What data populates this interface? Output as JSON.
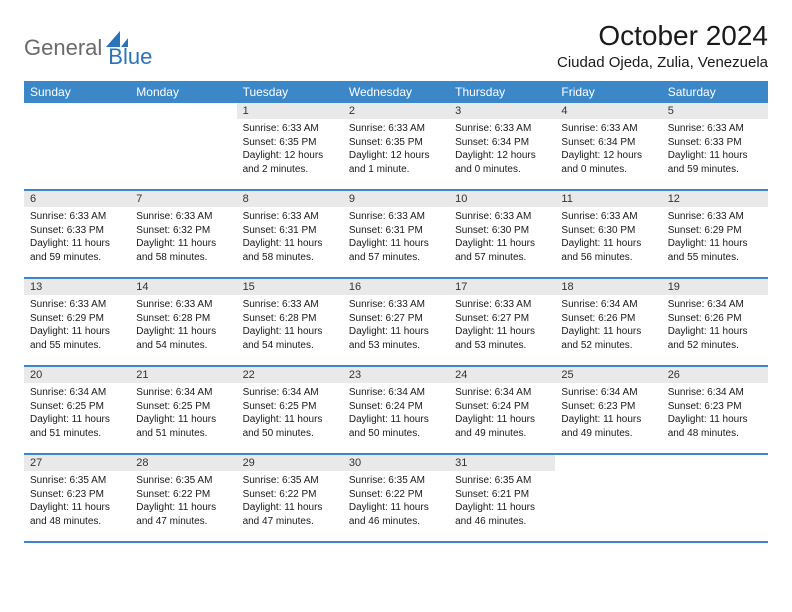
{
  "logo": {
    "general": "General",
    "blue": "Blue"
  },
  "title": "October 2024",
  "location": "Ciudad Ojeda, Zulia, Venezuela",
  "colors": {
    "header_bg": "#3b87c8",
    "header_text": "#ffffff",
    "daynum_bg": "#e9e9e9",
    "border": "#3b87c8",
    "logo_gray": "#6a6a6a",
    "logo_blue": "#2b74b8"
  },
  "day_names": [
    "Sunday",
    "Monday",
    "Tuesday",
    "Wednesday",
    "Thursday",
    "Friday",
    "Saturday"
  ],
  "weeks": [
    [
      {
        "n": "",
        "sr": "",
        "ss": "",
        "dl": ""
      },
      {
        "n": "",
        "sr": "",
        "ss": "",
        "dl": ""
      },
      {
        "n": "1",
        "sr": "Sunrise: 6:33 AM",
        "ss": "Sunset: 6:35 PM",
        "dl": "Daylight: 12 hours and 2 minutes."
      },
      {
        "n": "2",
        "sr": "Sunrise: 6:33 AM",
        "ss": "Sunset: 6:35 PM",
        "dl": "Daylight: 12 hours and 1 minute."
      },
      {
        "n": "3",
        "sr": "Sunrise: 6:33 AM",
        "ss": "Sunset: 6:34 PM",
        "dl": "Daylight: 12 hours and 0 minutes."
      },
      {
        "n": "4",
        "sr": "Sunrise: 6:33 AM",
        "ss": "Sunset: 6:34 PM",
        "dl": "Daylight: 12 hours and 0 minutes."
      },
      {
        "n": "5",
        "sr": "Sunrise: 6:33 AM",
        "ss": "Sunset: 6:33 PM",
        "dl": "Daylight: 11 hours and 59 minutes."
      }
    ],
    [
      {
        "n": "6",
        "sr": "Sunrise: 6:33 AM",
        "ss": "Sunset: 6:33 PM",
        "dl": "Daylight: 11 hours and 59 minutes."
      },
      {
        "n": "7",
        "sr": "Sunrise: 6:33 AM",
        "ss": "Sunset: 6:32 PM",
        "dl": "Daylight: 11 hours and 58 minutes."
      },
      {
        "n": "8",
        "sr": "Sunrise: 6:33 AM",
        "ss": "Sunset: 6:31 PM",
        "dl": "Daylight: 11 hours and 58 minutes."
      },
      {
        "n": "9",
        "sr": "Sunrise: 6:33 AM",
        "ss": "Sunset: 6:31 PM",
        "dl": "Daylight: 11 hours and 57 minutes."
      },
      {
        "n": "10",
        "sr": "Sunrise: 6:33 AM",
        "ss": "Sunset: 6:30 PM",
        "dl": "Daylight: 11 hours and 57 minutes."
      },
      {
        "n": "11",
        "sr": "Sunrise: 6:33 AM",
        "ss": "Sunset: 6:30 PM",
        "dl": "Daylight: 11 hours and 56 minutes."
      },
      {
        "n": "12",
        "sr": "Sunrise: 6:33 AM",
        "ss": "Sunset: 6:29 PM",
        "dl": "Daylight: 11 hours and 55 minutes."
      }
    ],
    [
      {
        "n": "13",
        "sr": "Sunrise: 6:33 AM",
        "ss": "Sunset: 6:29 PM",
        "dl": "Daylight: 11 hours and 55 minutes."
      },
      {
        "n": "14",
        "sr": "Sunrise: 6:33 AM",
        "ss": "Sunset: 6:28 PM",
        "dl": "Daylight: 11 hours and 54 minutes."
      },
      {
        "n": "15",
        "sr": "Sunrise: 6:33 AM",
        "ss": "Sunset: 6:28 PM",
        "dl": "Daylight: 11 hours and 54 minutes."
      },
      {
        "n": "16",
        "sr": "Sunrise: 6:33 AM",
        "ss": "Sunset: 6:27 PM",
        "dl": "Daylight: 11 hours and 53 minutes."
      },
      {
        "n": "17",
        "sr": "Sunrise: 6:33 AM",
        "ss": "Sunset: 6:27 PM",
        "dl": "Daylight: 11 hours and 53 minutes."
      },
      {
        "n": "18",
        "sr": "Sunrise: 6:34 AM",
        "ss": "Sunset: 6:26 PM",
        "dl": "Daylight: 11 hours and 52 minutes."
      },
      {
        "n": "19",
        "sr": "Sunrise: 6:34 AM",
        "ss": "Sunset: 6:26 PM",
        "dl": "Daylight: 11 hours and 52 minutes."
      }
    ],
    [
      {
        "n": "20",
        "sr": "Sunrise: 6:34 AM",
        "ss": "Sunset: 6:25 PM",
        "dl": "Daylight: 11 hours and 51 minutes."
      },
      {
        "n": "21",
        "sr": "Sunrise: 6:34 AM",
        "ss": "Sunset: 6:25 PM",
        "dl": "Daylight: 11 hours and 51 minutes."
      },
      {
        "n": "22",
        "sr": "Sunrise: 6:34 AM",
        "ss": "Sunset: 6:25 PM",
        "dl": "Daylight: 11 hours and 50 minutes."
      },
      {
        "n": "23",
        "sr": "Sunrise: 6:34 AM",
        "ss": "Sunset: 6:24 PM",
        "dl": "Daylight: 11 hours and 50 minutes."
      },
      {
        "n": "24",
        "sr": "Sunrise: 6:34 AM",
        "ss": "Sunset: 6:24 PM",
        "dl": "Daylight: 11 hours and 49 minutes."
      },
      {
        "n": "25",
        "sr": "Sunrise: 6:34 AM",
        "ss": "Sunset: 6:23 PM",
        "dl": "Daylight: 11 hours and 49 minutes."
      },
      {
        "n": "26",
        "sr": "Sunrise: 6:34 AM",
        "ss": "Sunset: 6:23 PM",
        "dl": "Daylight: 11 hours and 48 minutes."
      }
    ],
    [
      {
        "n": "27",
        "sr": "Sunrise: 6:35 AM",
        "ss": "Sunset: 6:23 PM",
        "dl": "Daylight: 11 hours and 48 minutes."
      },
      {
        "n": "28",
        "sr": "Sunrise: 6:35 AM",
        "ss": "Sunset: 6:22 PM",
        "dl": "Daylight: 11 hours and 47 minutes."
      },
      {
        "n": "29",
        "sr": "Sunrise: 6:35 AM",
        "ss": "Sunset: 6:22 PM",
        "dl": "Daylight: 11 hours and 47 minutes."
      },
      {
        "n": "30",
        "sr": "Sunrise: 6:35 AM",
        "ss": "Sunset: 6:22 PM",
        "dl": "Daylight: 11 hours and 46 minutes."
      },
      {
        "n": "31",
        "sr": "Sunrise: 6:35 AM",
        "ss": "Sunset: 6:21 PM",
        "dl": "Daylight: 11 hours and 46 minutes."
      },
      {
        "n": "",
        "sr": "",
        "ss": "",
        "dl": ""
      },
      {
        "n": "",
        "sr": "",
        "ss": "",
        "dl": ""
      }
    ]
  ]
}
